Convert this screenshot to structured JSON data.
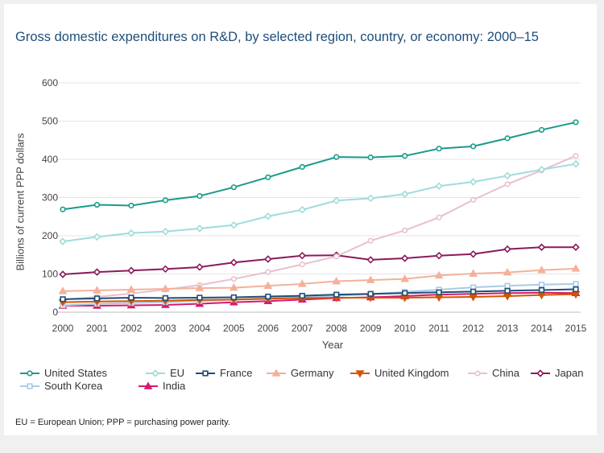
{
  "chart_data": {
    "type": "line",
    "title": "Gross domestic expenditures on R&D, by selected region, country, or economy: 2000–15",
    "xlabel": "Year",
    "ylabel": "Billions of current PPP dollars",
    "x": [
      2000,
      2001,
      2002,
      2003,
      2004,
      2005,
      2006,
      2007,
      2008,
      2009,
      2010,
      2011,
      2012,
      2013,
      2014,
      2015
    ],
    "y_ticks": [
      0,
      100,
      200,
      300,
      400,
      500,
      600
    ],
    "ylim": [
      0,
      600
    ],
    "grid": "horizontal",
    "legend_position": "bottom",
    "series": [
      {
        "name": "United States",
        "color": "#1a9a8a",
        "marker": "circle",
        "values": [
          269,
          281,
          279,
          293,
          304,
          327,
          353,
          380,
          406,
          405,
          409,
          428,
          434,
          455,
          477,
          497
        ]
      },
      {
        "name": "EU",
        "color": "#9fdcdc",
        "marker": "diamond",
        "values": [
          185,
          197,
          207,
          211,
          219,
          228,
          251,
          268,
          292,
          298,
          309,
          330,
          341,
          357,
          373,
          388
        ]
      },
      {
        "name": "France",
        "color": "#1f4e79",
        "marker": "square",
        "values": [
          34,
          36,
          38,
          37,
          38,
          39,
          41,
          43,
          46,
          48,
          50,
          52,
          54,
          56,
          58,
          60
        ]
      },
      {
        "name": "Germany",
        "color": "#f4b19a",
        "marker": "triangle-up",
        "values": [
          55,
          57,
          59,
          61,
          63,
          64,
          69,
          74,
          81,
          84,
          87,
          96,
          101,
          104,
          110,
          114
        ]
      },
      {
        "name": "United Kingdom",
        "color": "#d35400",
        "marker": "triangle-down",
        "values": [
          26,
          28,
          29,
          30,
          32,
          33,
          35,
          37,
          38,
          38,
          38,
          39,
          40,
          42,
          45,
          47
        ]
      },
      {
        "name": "China",
        "color": "#e8c0cf",
        "marker": "circle",
        "values": [
          33,
          40,
          49,
          59,
          71,
          87,
          105,
          125,
          146,
          187,
          214,
          248,
          294,
          335,
          371,
          409
        ]
      },
      {
        "name": "Japan",
        "color": "#8b1a5c",
        "marker": "diamond",
        "values": [
          99,
          105,
          109,
          113,
          118,
          130,
          139,
          148,
          149,
          137,
          141,
          148,
          152,
          165,
          170,
          170
        ]
      },
      {
        "name": "South Korea",
        "color": "#a8cce6",
        "marker": "square",
        "values": [
          18,
          22,
          24,
          26,
          29,
          33,
          37,
          41,
          43,
          47,
          53,
          59,
          65,
          69,
          72,
          74
        ]
      },
      {
        "name": "India",
        "color": "#d6196e",
        "marker": "triangle-up",
        "values": [
          17,
          17,
          18,
          19,
          22,
          26,
          29,
          33,
          37,
          39,
          42,
          46,
          48,
          50,
          51,
          50
        ]
      }
    ]
  },
  "footnote": "EU = European Union; PPP = purchasing power parity."
}
